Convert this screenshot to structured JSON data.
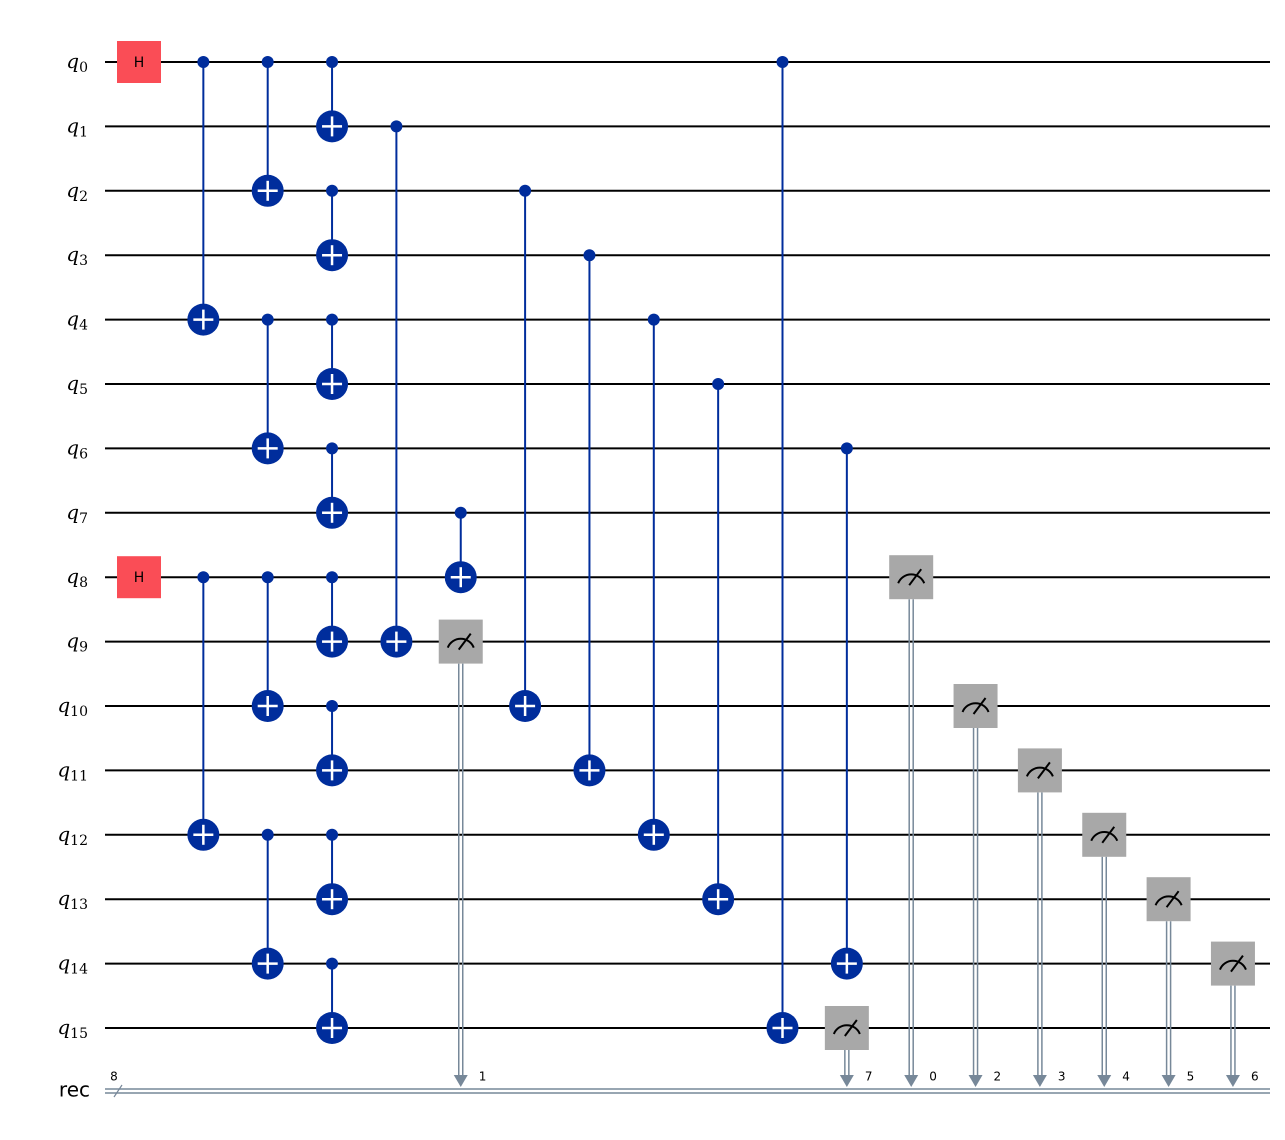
{
  "qubit_name": "q",
  "qubits": [
    "0",
    "1",
    "2",
    "3",
    "4",
    "5",
    "6",
    "7",
    "8",
    "9",
    "10",
    "11",
    "12",
    "13",
    "14",
    "15"
  ],
  "creg": {
    "name": "rec",
    "size": "8"
  },
  "moments": [
    [
      {
        "gate": "H",
        "target": 0
      },
      {
        "gate": "H",
        "target": 8
      }
    ],
    [
      {
        "control": 0,
        "target": 4
      },
      {
        "control": 8,
        "target": 12
      }
    ],
    [
      {
        "control": 0,
        "target": 2
      },
      {
        "control": 4,
        "target": 6
      },
      {
        "control": 8,
        "target": 10
      },
      {
        "control": 12,
        "target": 14
      }
    ],
    [
      {
        "control": 0,
        "target": 1
      },
      {
        "control": 2,
        "target": 3
      },
      {
        "control": 4,
        "target": 5
      },
      {
        "control": 6,
        "target": 7
      },
      {
        "control": 8,
        "target": 9
      },
      {
        "control": 10,
        "target": 11
      },
      {
        "control": 12,
        "target": 13
      },
      {
        "control": 14,
        "target": 15
      }
    ],
    [
      {
        "control": 1,
        "target": 9
      }
    ],
    [
      {
        "control": 7,
        "target": 8
      },
      {
        "measure": 9,
        "bit": "1"
      }
    ],
    [
      {
        "control": 2,
        "target": 10
      }
    ],
    [
      {
        "control": 3,
        "target": 11
      }
    ],
    [
      {
        "control": 4,
        "target": 12
      }
    ],
    [
      {
        "control": 5,
        "target": 13
      }
    ],
    [
      {
        "control": 0,
        "target": 15
      }
    ],
    [
      {
        "control": 6,
        "target": 14
      },
      {
        "measure": 15,
        "bit": "7"
      }
    ],
    [
      {
        "measure": 8,
        "bit": "0"
      }
    ],
    [
      {
        "measure": 10,
        "bit": "2"
      }
    ],
    [
      {
        "measure": 11,
        "bit": "3"
      }
    ],
    [
      {
        "measure": 12,
        "bit": "4"
      }
    ],
    [
      {
        "measure": 13,
        "bit": "5"
      }
    ],
    [
      {
        "measure": 14,
        "bit": "6"
      }
    ]
  ]
}
